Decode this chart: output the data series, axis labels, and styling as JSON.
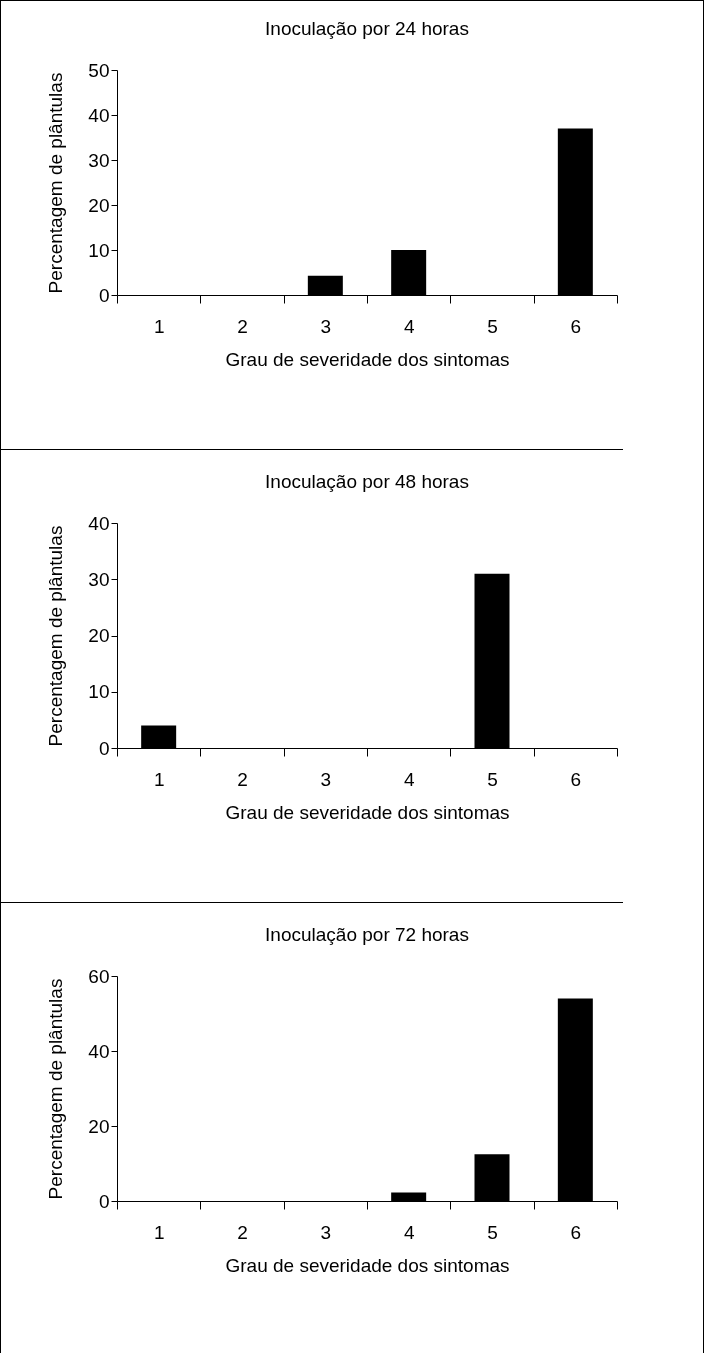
{
  "chart_data": [
    {
      "type": "bar",
      "title": "Inoculação por 24 horas",
      "xlabel": "Grau de severidade dos sintomas",
      "ylabel": "Percentagem de plântulas",
      "categories": [
        "1",
        "2",
        "3",
        "4",
        "5",
        "6"
      ],
      "values": [
        0,
        0,
        4.3,
        10,
        0,
        37
      ],
      "color": "#000000",
      "ylim": [
        0,
        50
      ],
      "yticks": [
        0,
        10,
        20,
        30,
        40,
        50
      ],
      "grid": false
    },
    {
      "type": "bar",
      "title": "Inoculação por 48 horas",
      "xlabel": "Grau de severidade dos sintomas",
      "ylabel": "Percentagem de plântulas",
      "categories": [
        "1",
        "2",
        "3",
        "4",
        "5",
        "6"
      ],
      "values": [
        4,
        0,
        0,
        0,
        31,
        0
      ],
      "color": "#000000",
      "ylim": [
        0,
        40
      ],
      "yticks": [
        0,
        10,
        20,
        30,
        40
      ],
      "grid": false
    },
    {
      "type": "bar",
      "title": "Inoculação por 72 horas",
      "xlabel": "Grau de severidade dos sintomas",
      "ylabel": "Percentagem de plântulas",
      "categories": [
        "1",
        "2",
        "3",
        "4",
        "5",
        "6"
      ],
      "values": [
        0,
        0,
        0,
        2.3,
        12.5,
        54
      ],
      "color": "#000000",
      "ylim": [
        0,
        60
      ],
      "yticks": [
        0,
        20,
        40,
        60
      ],
      "grid": false
    }
  ]
}
